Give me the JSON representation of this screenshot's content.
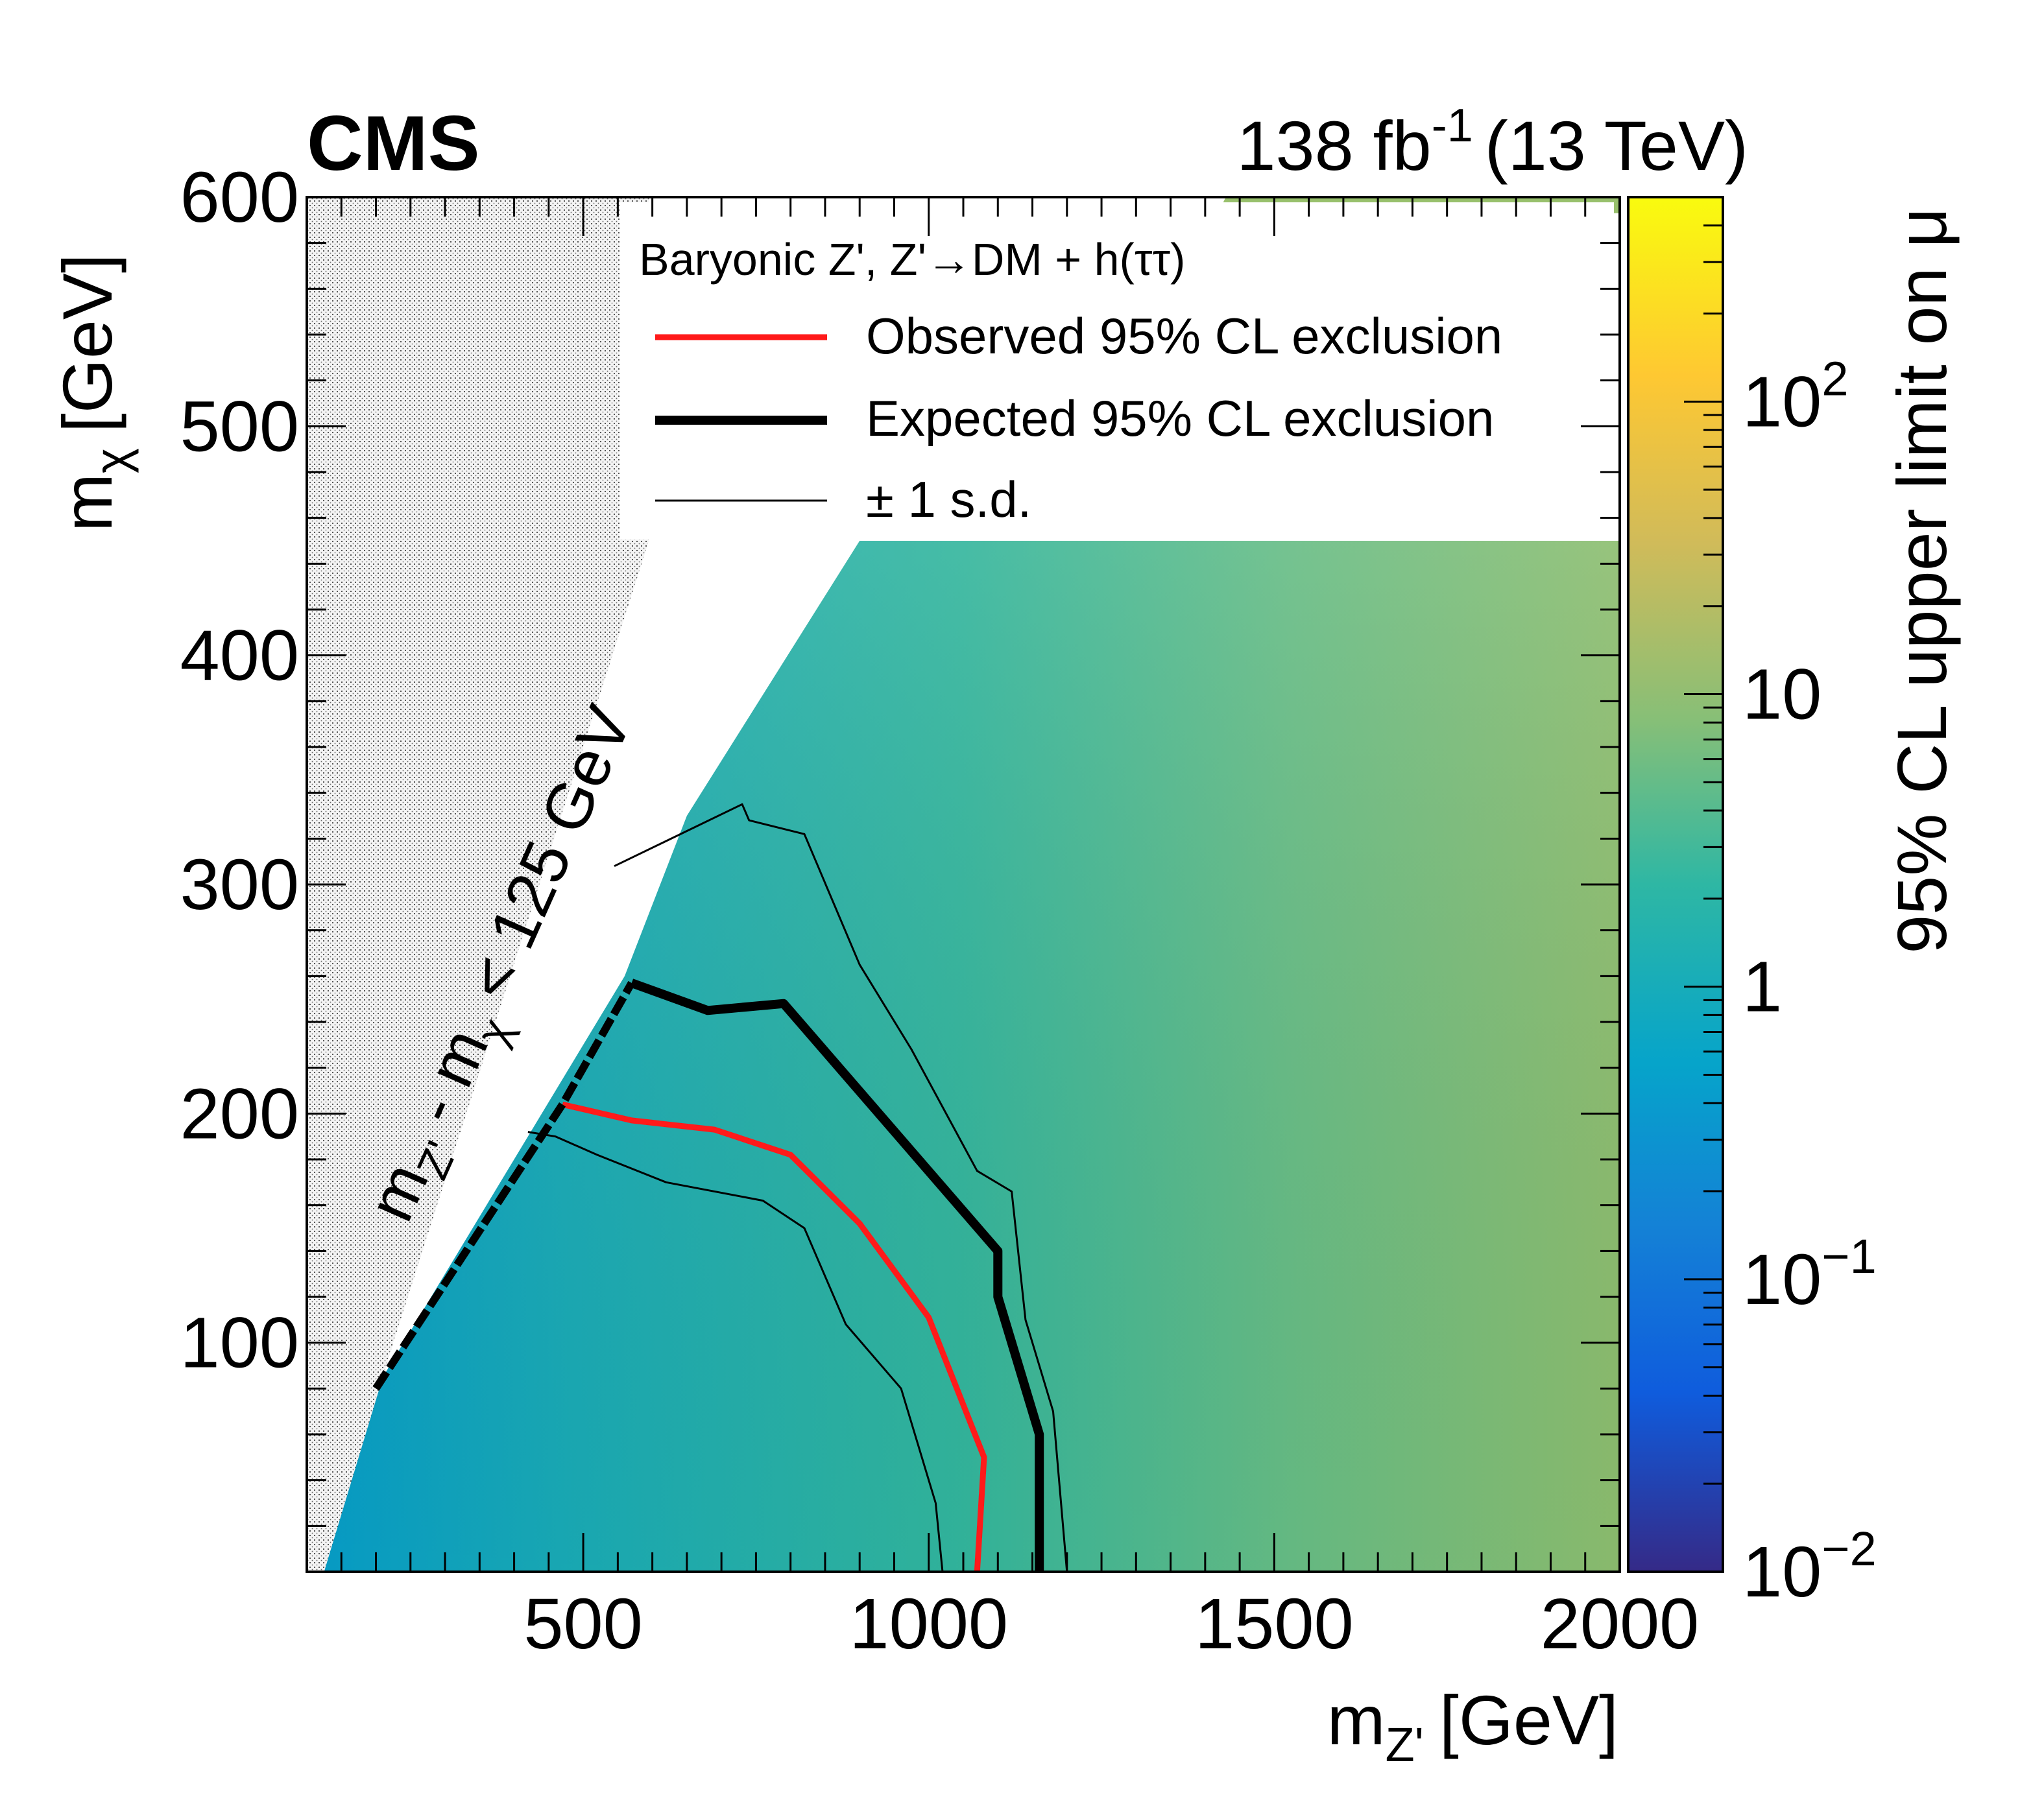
{
  "header": {
    "experiment": "CMS",
    "lumi": "138 fb",
    "lumi_sup": "-1",
    "energy": "(13 TeV)"
  },
  "labels": {
    "ylabel_main": "m",
    "ylabel_sub": "χ",
    "ylabel_unit": "[GeV]",
    "xlabel_main": "m",
    "xlabel_sub": "Z'",
    "xlabel_unit": "[GeV]",
    "zlabel": "95% CL upper limit on μ",
    "diag_m1": "m",
    "diag_s1": "Z'",
    "diag_mid": " - m",
    "diag_s2": "χ",
    "diag_end": " < 125 GeV"
  },
  "legend": {
    "title": "Baryonic Z', Z'→DM + h(ττ)",
    "entries": [
      {
        "label": "Observed 95% CL exclusion",
        "color": "#ff1a1a",
        "style": "thick"
      },
      {
        "label": "Expected 95% CL exclusion",
        "color": "#000000",
        "style": "thicker"
      },
      {
        "label": "± 1 s.d.",
        "color": "#000000",
        "style": "thin"
      }
    ]
  },
  "colors": {
    "observed": "#ff1a1a",
    "expected": "#000000",
    "band": "#000000",
    "hatch_bg": "#f4f4f4",
    "hatch_dot": "#444444"
  },
  "chart_data": {
    "type": "heatmap",
    "title": "",
    "xlabel": "m_Z' [GeV]",
    "ylabel": "m_χ [GeV]",
    "zlabel": "95% CL upper limit on μ",
    "xlim": [
      100,
      2000
    ],
    "ylim": [
      0,
      600
    ],
    "zlim": [
      0.01,
      500
    ],
    "zscale": "log",
    "colormap": "viridis",
    "x_ticks": [
      500,
      1000,
      1500,
      2000
    ],
    "y_ticks": [
      100,
      200,
      300,
      400,
      500,
      600
    ],
    "z_ticks": [
      {
        "value": 0.01,
        "base": "10",
        "exp": "−2"
      },
      {
        "value": 0.1,
        "base": "10",
        "exp": "−1"
      },
      {
        "value": 1,
        "base": "1",
        "exp": ""
      },
      {
        "value": 10,
        "base": "10",
        "exp": ""
      },
      {
        "value": 100,
        "base": "10",
        "exp": "2"
      }
    ],
    "excluded_region": "m_Z' - m_χ < 125 GeV",
    "grid": false,
    "legend_position": "top-right",
    "series": [
      {
        "name": "Observed 95% CL exclusion",
        "points": [
          [
            470,
            204
          ],
          [
            570,
            197
          ],
          [
            690,
            193
          ],
          [
            760,
            186
          ],
          [
            800,
            182
          ],
          [
            900,
            152
          ],
          [
            1000,
            111
          ],
          [
            1080,
            50
          ],
          [
            1070,
            0
          ]
        ]
      },
      {
        "name": "Expected 95% CL exclusion",
        "points": [
          [
            570,
            257
          ],
          [
            680,
            245
          ],
          [
            790,
            248
          ],
          [
            1100,
            140
          ],
          [
            1100,
            120
          ],
          [
            1160,
            60
          ],
          [
            1160,
            0
          ]
        ]
      },
      {
        "name": "+1 s.d.",
        "points": [
          [
            545,
            308
          ],
          [
            730,
            335
          ],
          [
            740,
            328
          ],
          [
            820,
            322
          ],
          [
            900,
            265
          ],
          [
            975,
            228
          ],
          [
            1070,
            175
          ],
          [
            1120,
            166
          ],
          [
            1140,
            110
          ],
          [
            1180,
            70
          ],
          [
            1200,
            0
          ]
        ]
      },
      {
        "name": "-1 s.d.",
        "points": [
          [
            420,
            192
          ],
          [
            460,
            190
          ],
          [
            520,
            182
          ],
          [
            620,
            170
          ],
          [
            760,
            162
          ],
          [
            820,
            150
          ],
          [
            880,
            108
          ],
          [
            960,
            80
          ],
          [
            1010,
            30
          ],
          [
            1020,
            0
          ]
        ]
      }
    ]
  }
}
